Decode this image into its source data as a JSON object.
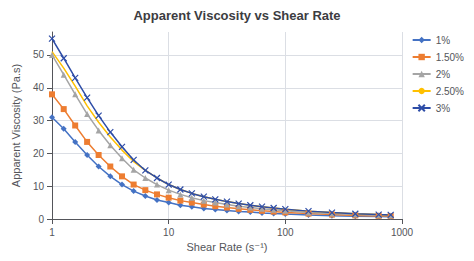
{
  "chart_data": {
    "type": "line",
    "title": "Apparent Viscosity vs Shear Rate",
    "xlabel": "Shear Rate (s⁻¹)",
    "ylabel": "Apparent Viscosity (Pa.s)",
    "x": [
      1.0,
      1.26,
      1.58,
      2.0,
      2.51,
      3.16,
      3.98,
      5.01,
      6.31,
      7.94,
      10.0,
      12.6,
      15.8,
      20.0,
      25.1,
      31.6,
      39.8,
      50.1,
      63.1,
      79.4,
      100,
      158,
      251,
      398,
      631,
      800
    ],
    "series": [
      {
        "name": "1%",
        "color": "#4472C4",
        "marker": "diamond",
        "values": [
          31.0,
          27.5,
          23.5,
          19.5,
          16.0,
          13.0,
          10.5,
          8.5,
          7.0,
          5.8,
          5.0,
          4.2,
          3.7,
          3.2,
          2.9,
          2.6,
          2.3,
          2.1,
          1.85,
          1.65,
          1.5,
          1.2,
          1.0,
          0.85,
          0.75,
          0.7
        ]
      },
      {
        "name": "1.50%",
        "color": "#ED7D31",
        "marker": "square",
        "values": [
          38.0,
          33.5,
          28.5,
          23.5,
          19.5,
          16.0,
          13.0,
          10.5,
          8.8,
          7.5,
          6.5,
          5.6,
          5.0,
          4.4,
          3.9,
          3.5,
          3.1,
          2.8,
          2.5,
          2.25,
          2.0,
          1.65,
          1.35,
          1.1,
          0.95,
          0.9
        ]
      },
      {
        "name": "2%",
        "color": "#A5A5A5",
        "marker": "triangle",
        "values": [
          50.0,
          44.0,
          38.0,
          32.0,
          27.0,
          22.5,
          18.5,
          15.0,
          12.5,
          10.5,
          8.8,
          7.5,
          6.5,
          5.6,
          5.0,
          4.4,
          3.9,
          3.5,
          3.1,
          2.8,
          2.5,
          2.0,
          1.65,
          1.35,
          1.15,
          1.05
        ]
      },
      {
        "name": "2.50%",
        "color": "#FFC000",
        "marker": "none",
        "values": [
          51.0,
          46.0,
          40.5,
          34.5,
          29.5,
          25.0,
          21.0,
          17.5,
          14.8,
          12.5,
          10.5,
          9.0,
          7.8,
          6.8,
          6.0,
          5.3,
          4.7,
          4.2,
          3.75,
          3.35,
          3.0,
          2.4,
          1.95,
          1.6,
          1.35,
          1.25
        ]
      },
      {
        "name": "3%",
        "color": "#2E4DA7",
        "marker": "x",
        "values": [
          55.0,
          49.0,
          43.0,
          37.0,
          31.5,
          26.5,
          22.0,
          18.0,
          14.8,
          12.5,
          10.5,
          9.0,
          7.8,
          6.8,
          6.0,
          5.3,
          4.7,
          4.2,
          3.75,
          3.35,
          3.0,
          2.4,
          1.95,
          1.6,
          1.35,
          1.25
        ]
      }
    ],
    "xlim": [
      1,
      1000
    ],
    "xticks": [
      1,
      10,
      100,
      1000
    ],
    "ylim": [
      0,
      57
    ],
    "yticks": [
      0,
      10,
      20,
      30,
      40,
      50
    ],
    "log": "x",
    "grid": true,
    "legend": "upper right"
  }
}
